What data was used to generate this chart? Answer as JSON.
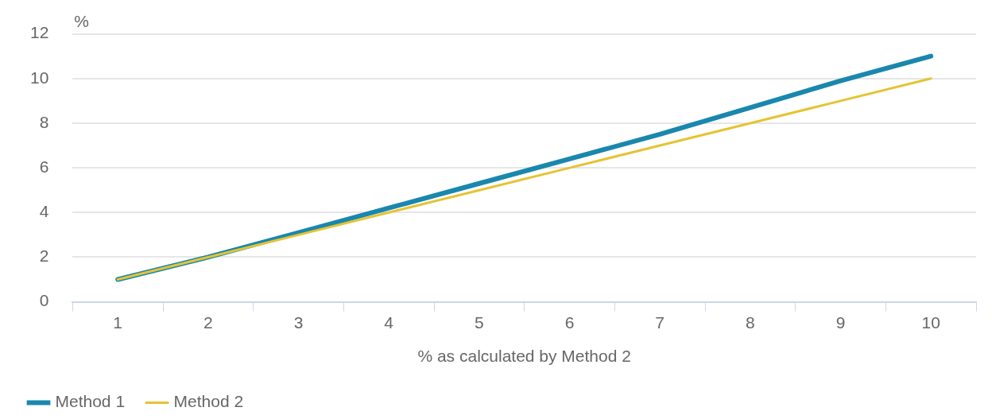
{
  "chart_data": {
    "type": "line",
    "ylabel": "%",
    "xlabel": "% as calculated by Method 2",
    "categories": [
      "1",
      "2",
      "3",
      "4",
      "5",
      "6",
      "7",
      "8",
      "9",
      "10"
    ],
    "series": [
      {
        "name": "Method 1",
        "color": "#1a87ad",
        "values": [
          1.0,
          2.0,
          3.1,
          4.2,
          5.3,
          6.4,
          7.5,
          8.7,
          9.9,
          11.0
        ]
      },
      {
        "name": "Method 2",
        "color": "#e5c334",
        "values": [
          1,
          2,
          3,
          4,
          5,
          6,
          7,
          8,
          9,
          10
        ]
      }
    ],
    "ylim": [
      0,
      12
    ],
    "yticks": [
      0,
      2,
      4,
      6,
      8,
      10,
      12
    ],
    "grid": "y",
    "legend": "bottom left",
    "marker": "none",
    "line_style": "solid"
  }
}
